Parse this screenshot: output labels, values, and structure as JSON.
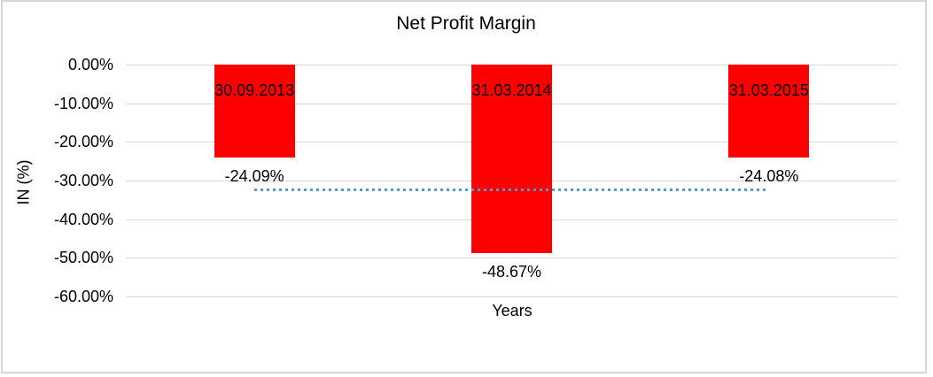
{
  "chart_data": {
    "type": "bar",
    "title": "Net Profit Margin",
    "xlabel": "Years",
    "ylabel": "IN (%)",
    "categories": [
      "30.09.2013",
      "31.03.2014",
      "31.03.2015"
    ],
    "values": [
      -24.09,
      -48.67,
      -24.08
    ],
    "value_labels": [
      "-24.09%",
      "-48.67%",
      "-24.08%"
    ],
    "ylim": [
      -60,
      0
    ],
    "ytick_labels": [
      "0.00%",
      "-10.00%",
      "-20.00%",
      "-30.00%",
      "-40.00%",
      "-50.00%",
      "-60.00%"
    ],
    "ytick_values": [
      0,
      -10,
      -20,
      -30,
      -40,
      -50,
      -60
    ],
    "grid": true,
    "legend": false,
    "bar_color": "#FF0000",
    "gridline_color": "#D9D9D9",
    "trendline": {
      "style": "dotted",
      "color": "#4E9BD4",
      "approx_value": -32.3,
      "from_category": "30.09.2013",
      "to_category": "31.03.2015"
    }
  }
}
